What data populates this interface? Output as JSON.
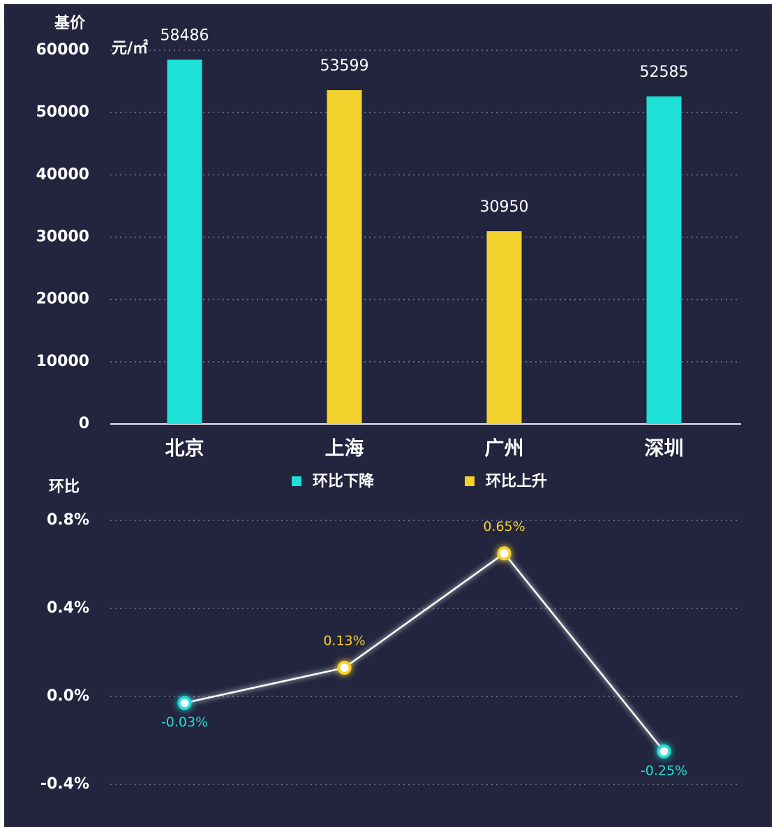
{
  "chart_data": [
    {
      "type": "bar",
      "y_label": "基价",
      "unit": "元/㎡",
      "categories": [
        "北京",
        "上海",
        "广州",
        "深圳"
      ],
      "values": [
        58486,
        53599,
        30950,
        52585
      ],
      "colors": [
        "#1de0d6",
        "#f4d22e",
        "#f4d22e",
        "#1de0d6"
      ],
      "ylim": [
        0,
        60000
      ],
      "yticks": [
        0,
        10000,
        20000,
        30000,
        40000,
        50000,
        60000
      ],
      "grid": true,
      "legend": [
        {
          "name": "环比下降",
          "color": "#1de0d6"
        },
        {
          "name": "环比上升",
          "color": "#f4d22e"
        }
      ]
    },
    {
      "type": "line",
      "y_label": "环比",
      "color": "#ffffff",
      "values": [
        -0.03,
        0.13,
        0.65,
        -0.25
      ],
      "value_labels": [
        "-0.03%",
        "0.13%",
        "0.65%",
        "-0.25%"
      ],
      "point_colors": [
        "#1de0d6",
        "#f4d22e",
        "#f4d22e",
        "#1de0d6"
      ],
      "ylim": [
        -0.4,
        0.8
      ],
      "yticks": [
        {
          "value": -0.4,
          "label": "-0.4%"
        },
        {
          "value": 0.0,
          "label": "0.0%"
        },
        {
          "value": 0.4,
          "label": "0.4%"
        },
        {
          "value": 0.8,
          "label": "0.8%"
        }
      ],
      "grid": true
    }
  ]
}
